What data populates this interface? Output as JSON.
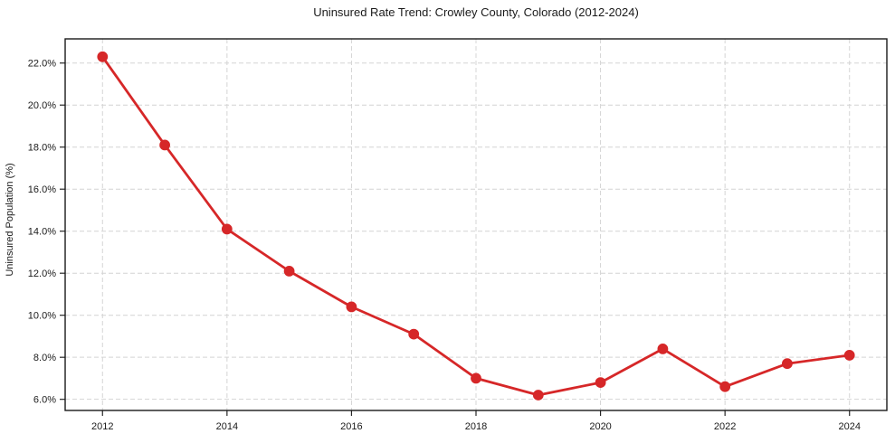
{
  "page": {
    "background_color": "#ffffff"
  },
  "chart_data": {
    "type": "line",
    "title": "Uninsured Rate Trend: Crowley County, Colorado (2012-2024)",
    "xlabel": "",
    "ylabel": "Uninsured Population (%)",
    "x": [
      2012,
      2013,
      2014,
      2015,
      2016,
      2017,
      2018,
      2019,
      2020,
      2021,
      2022,
      2023,
      2024
    ],
    "values": [
      22.3,
      18.1,
      14.1,
      12.1,
      10.4,
      9.1,
      7.0,
      6.2,
      6.8,
      8.4,
      6.6,
      7.7,
      8.1
    ],
    "x_ticks": [
      2012,
      2014,
      2016,
      2018,
      2020,
      2022,
      2024
    ],
    "x_tick_labels": [
      "2012",
      "2014",
      "2016",
      "2018",
      "2020",
      "2022",
      "2024"
    ],
    "y_ticks": [
      6,
      8,
      10,
      12,
      14,
      16,
      18,
      20,
      22
    ],
    "y_tick_labels": [
      "6.0%",
      "8.0%",
      "10.0%",
      "12.0%",
      "14.0%",
      "16.0%",
      "18.0%",
      "20.0%",
      "22.0%"
    ],
    "xlim": [
      2011.4,
      2024.6
    ],
    "ylim": [
      5.47,
      23.15
    ],
    "grid": true,
    "grid_style": "dashed",
    "legend_position": "none",
    "line_color": "#d62728",
    "marker": "circle"
  }
}
